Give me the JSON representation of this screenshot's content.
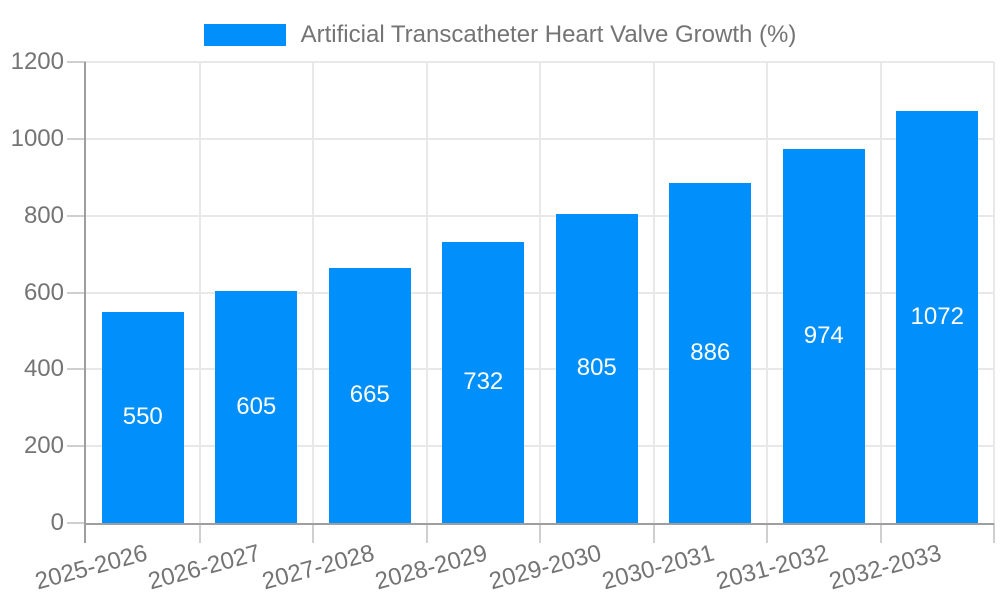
{
  "legend": {
    "label": "Artificial Transcatheter Heart Valve Growth (%)",
    "swatch_color": "#008FFB"
  },
  "chart_data": {
    "type": "bar",
    "title": "",
    "categories": [
      "2025-2026",
      "2026-2027",
      "2027-2028",
      "2028-2029",
      "2029-2030",
      "2030-2031",
      "2031-2032",
      "2032-2033"
    ],
    "series": [
      {
        "name": "Artificial Transcatheter Heart Valve Growth (%)",
        "values": [
          550,
          605,
          665,
          732,
          805,
          886,
          974,
          1072
        ],
        "color": "#008FFB"
      }
    ],
    "xlabel": "",
    "ylabel": "",
    "ylim": [
      0,
      1200
    ],
    "y_ticks": [
      0,
      200,
      400,
      600,
      800,
      1000,
      1200
    ],
    "grid": true,
    "legend_position": "top-center",
    "value_labels": {
      "position": "inside-center",
      "color": "#ffffff"
    },
    "x_tick_label_rotation_deg": -15,
    "axis_text_color": "#747474",
    "gridline_color": "#e8e8e8",
    "axis_line_color": "#9e9e9e",
    "tick_color": "#cfcfcf"
  }
}
